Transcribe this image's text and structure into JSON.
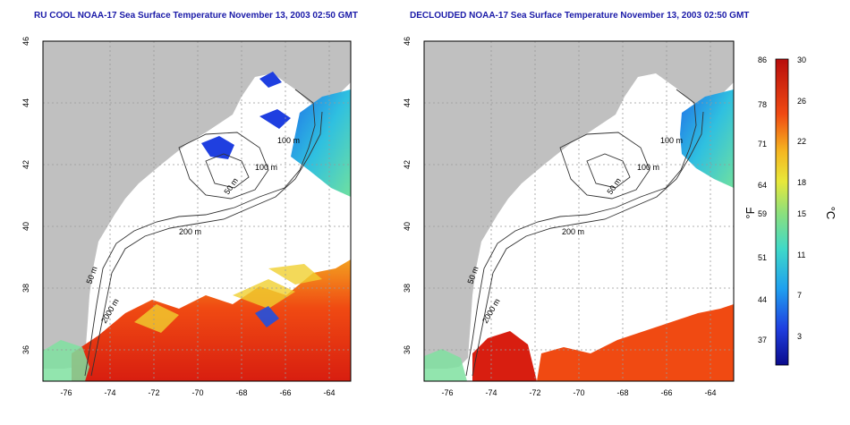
{
  "panels": [
    {
      "id": "left",
      "title": "RU COOL NOAA-17 Sea Surface Temperature November 13, 2003 02:50 GMT",
      "x_ticks": [
        "-76",
        "-74",
        "-72",
        "-70",
        "-68",
        "-66",
        "-64"
      ],
      "y_ticks": [
        "46",
        "44",
        "42",
        "40",
        "38",
        "36"
      ],
      "contours": [
        "100 m",
        "100 m",
        "50 m",
        "200 m",
        "50 m",
        "2000 m"
      ]
    },
    {
      "id": "right",
      "title": "DECLOUDED NOAA-17 Sea Surface Temperature November 13, 2003 02:50 GMT",
      "x_ticks": [
        "-76",
        "-74",
        "-72",
        "-70",
        "-68",
        "-66",
        "-64"
      ],
      "y_ticks": [
        "46",
        "44",
        "42",
        "40",
        "38",
        "36"
      ],
      "contours": [
        "100 m",
        "100 m",
        "50 m",
        "200 m",
        "50 m",
        "2000 m"
      ]
    }
  ],
  "colorbar": {
    "left_unit": "°F",
    "right_unit": "°C",
    "f_ticks": [
      "86",
      "78",
      "71",
      "64",
      "59",
      "51",
      "44",
      "37"
    ],
    "c_ticks": [
      "30",
      "26",
      "22",
      "18",
      "15",
      "11",
      "7",
      "3"
    ]
  },
  "colors": {
    "land": "#c0c0c0",
    "ocean_cloud": "#ffffff",
    "title": "#1a1aa8"
  }
}
